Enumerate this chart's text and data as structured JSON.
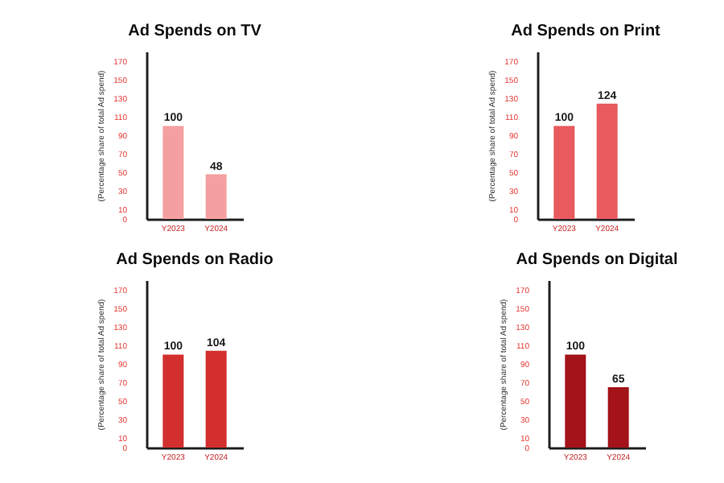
{
  "chart_data": [
    {
      "type": "bar",
      "title": "Ad Spends on TV",
      "ylabel": "(Percentage share of total Ad spend)",
      "categories": [
        "Y2023",
        "Y2024"
      ],
      "values": [
        100,
        48
      ],
      "color": "#f4a0a0",
      "data_labels": true,
      "ylim": [
        0,
        180
      ],
      "yticks": [
        0,
        10,
        30,
        50,
        70,
        90,
        110,
        130,
        150,
        170
      ],
      "grid": false
    },
    {
      "type": "bar",
      "title": "Ad Spends on Print",
      "ylabel": "(Percentage share of total Ad spend)",
      "categories": [
        "Y2023",
        "Y2024"
      ],
      "values": [
        100,
        124
      ],
      "color": "#e85a5e",
      "data_labels": true,
      "ylim": [
        0,
        180
      ],
      "yticks": [
        0,
        10,
        30,
        50,
        70,
        90,
        110,
        130,
        150,
        170
      ],
      "grid": false
    },
    {
      "type": "bar",
      "title": "Ad Spends on Radio",
      "ylabel": "(Percentage share of total Ad spend)",
      "categories": [
        "Y2023",
        "Y2024"
      ],
      "values": [
        100,
        104
      ],
      "color": "#d32f2f",
      "data_labels": true,
      "ylim": [
        0,
        180
      ],
      "yticks": [
        0,
        10,
        30,
        50,
        70,
        90,
        110,
        130,
        150,
        170
      ],
      "grid": false
    },
    {
      "type": "bar",
      "title": "Ad Spends on Digital",
      "ylabel": "(Percentage share of total Ad spend)",
      "categories": [
        "Y2023",
        "Y2024"
      ],
      "values": [
        100,
        65
      ],
      "color": "#a31319",
      "data_labels": true,
      "ylim": [
        0,
        180
      ],
      "yticks": [
        0,
        10,
        30,
        50,
        70,
        90,
        110,
        130,
        150,
        170
      ],
      "grid": false
    }
  ]
}
